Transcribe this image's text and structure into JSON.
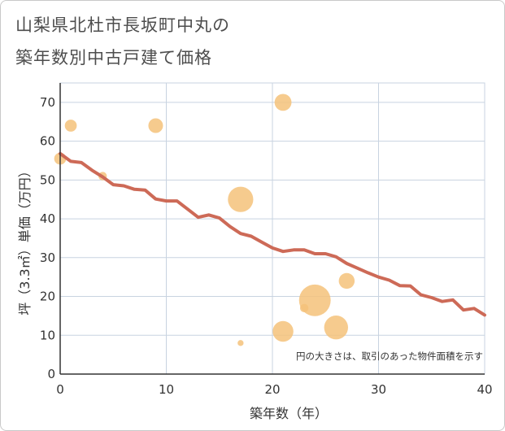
{
  "chart_data": {
    "type": "scatter",
    "title_line1": "山梨県北杜市長坂町中丸の",
    "title_line2": "築年数別中古戸建て価格",
    "xlabel": "築年数（年）",
    "ylabel": "坪（3.3㎡）単価（万円）",
    "xlim": [
      0,
      40
    ],
    "ylim": [
      0,
      75
    ],
    "xticks": [
      0,
      10,
      20,
      30,
      40
    ],
    "yticks": [
      0,
      10,
      20,
      30,
      40,
      50,
      60,
      70
    ],
    "xtick_labels": [
      "0",
      "10",
      "20",
      "30",
      "40"
    ],
    "ytick_labels": [
      "0",
      "10",
      "20",
      "30",
      "40",
      "50",
      "60",
      "70"
    ],
    "note": "円の大きさは、取引のあった物件面積を示す",
    "colors": {
      "bubble": "#f5c27a",
      "trend": "#cd6a57",
      "grid": "#c8d3e0",
      "axis": "#333333"
    },
    "bubbles": [
      {
        "x": 0,
        "y": 55.5,
        "size": 2
      },
      {
        "x": 1,
        "y": 64,
        "size": 2
      },
      {
        "x": 4,
        "y": 51,
        "size": 1
      },
      {
        "x": 9,
        "y": 64,
        "size": 3
      },
      {
        "x": 17,
        "y": 45,
        "size": 9
      },
      {
        "x": 17,
        "y": 8,
        "size": 0.5
      },
      {
        "x": 21,
        "y": 70,
        "size": 4
      },
      {
        "x": 21,
        "y": 11,
        "size": 6
      },
      {
        "x": 23,
        "y": 17,
        "size": 1
      },
      {
        "x": 24,
        "y": 19,
        "size": 14
      },
      {
        "x": 26,
        "y": 12,
        "size": 8
      },
      {
        "x": 27,
        "y": 24,
        "size": 3.5
      }
    ],
    "trend": {
      "x": [
        0,
        1,
        2,
        3,
        4,
        5,
        6,
        7,
        8,
        9,
        10,
        11,
        12,
        13,
        14,
        15,
        16,
        17,
        18,
        19,
        20,
        21,
        22,
        23,
        24,
        25,
        26,
        27,
        28,
        29,
        30,
        31,
        32,
        33,
        34,
        35,
        36,
        37,
        38,
        39,
        40
      ],
      "y": [
        56.8,
        54.8,
        54.5,
        52.5,
        50.8,
        48.8,
        48.5,
        47.6,
        47.4,
        45.1,
        44.6,
        44.6,
        42.5,
        40.4,
        41,
        40.2,
        38,
        36.2,
        35.5,
        34,
        32.5,
        31.6,
        32,
        32,
        31,
        31,
        30.2,
        28.5,
        27.3,
        26.1,
        25,
        24.2,
        22.8,
        22.7,
        20.4,
        19.7,
        18.7,
        19.1,
        16.5,
        16.9,
        15.2
      ]
    }
  }
}
